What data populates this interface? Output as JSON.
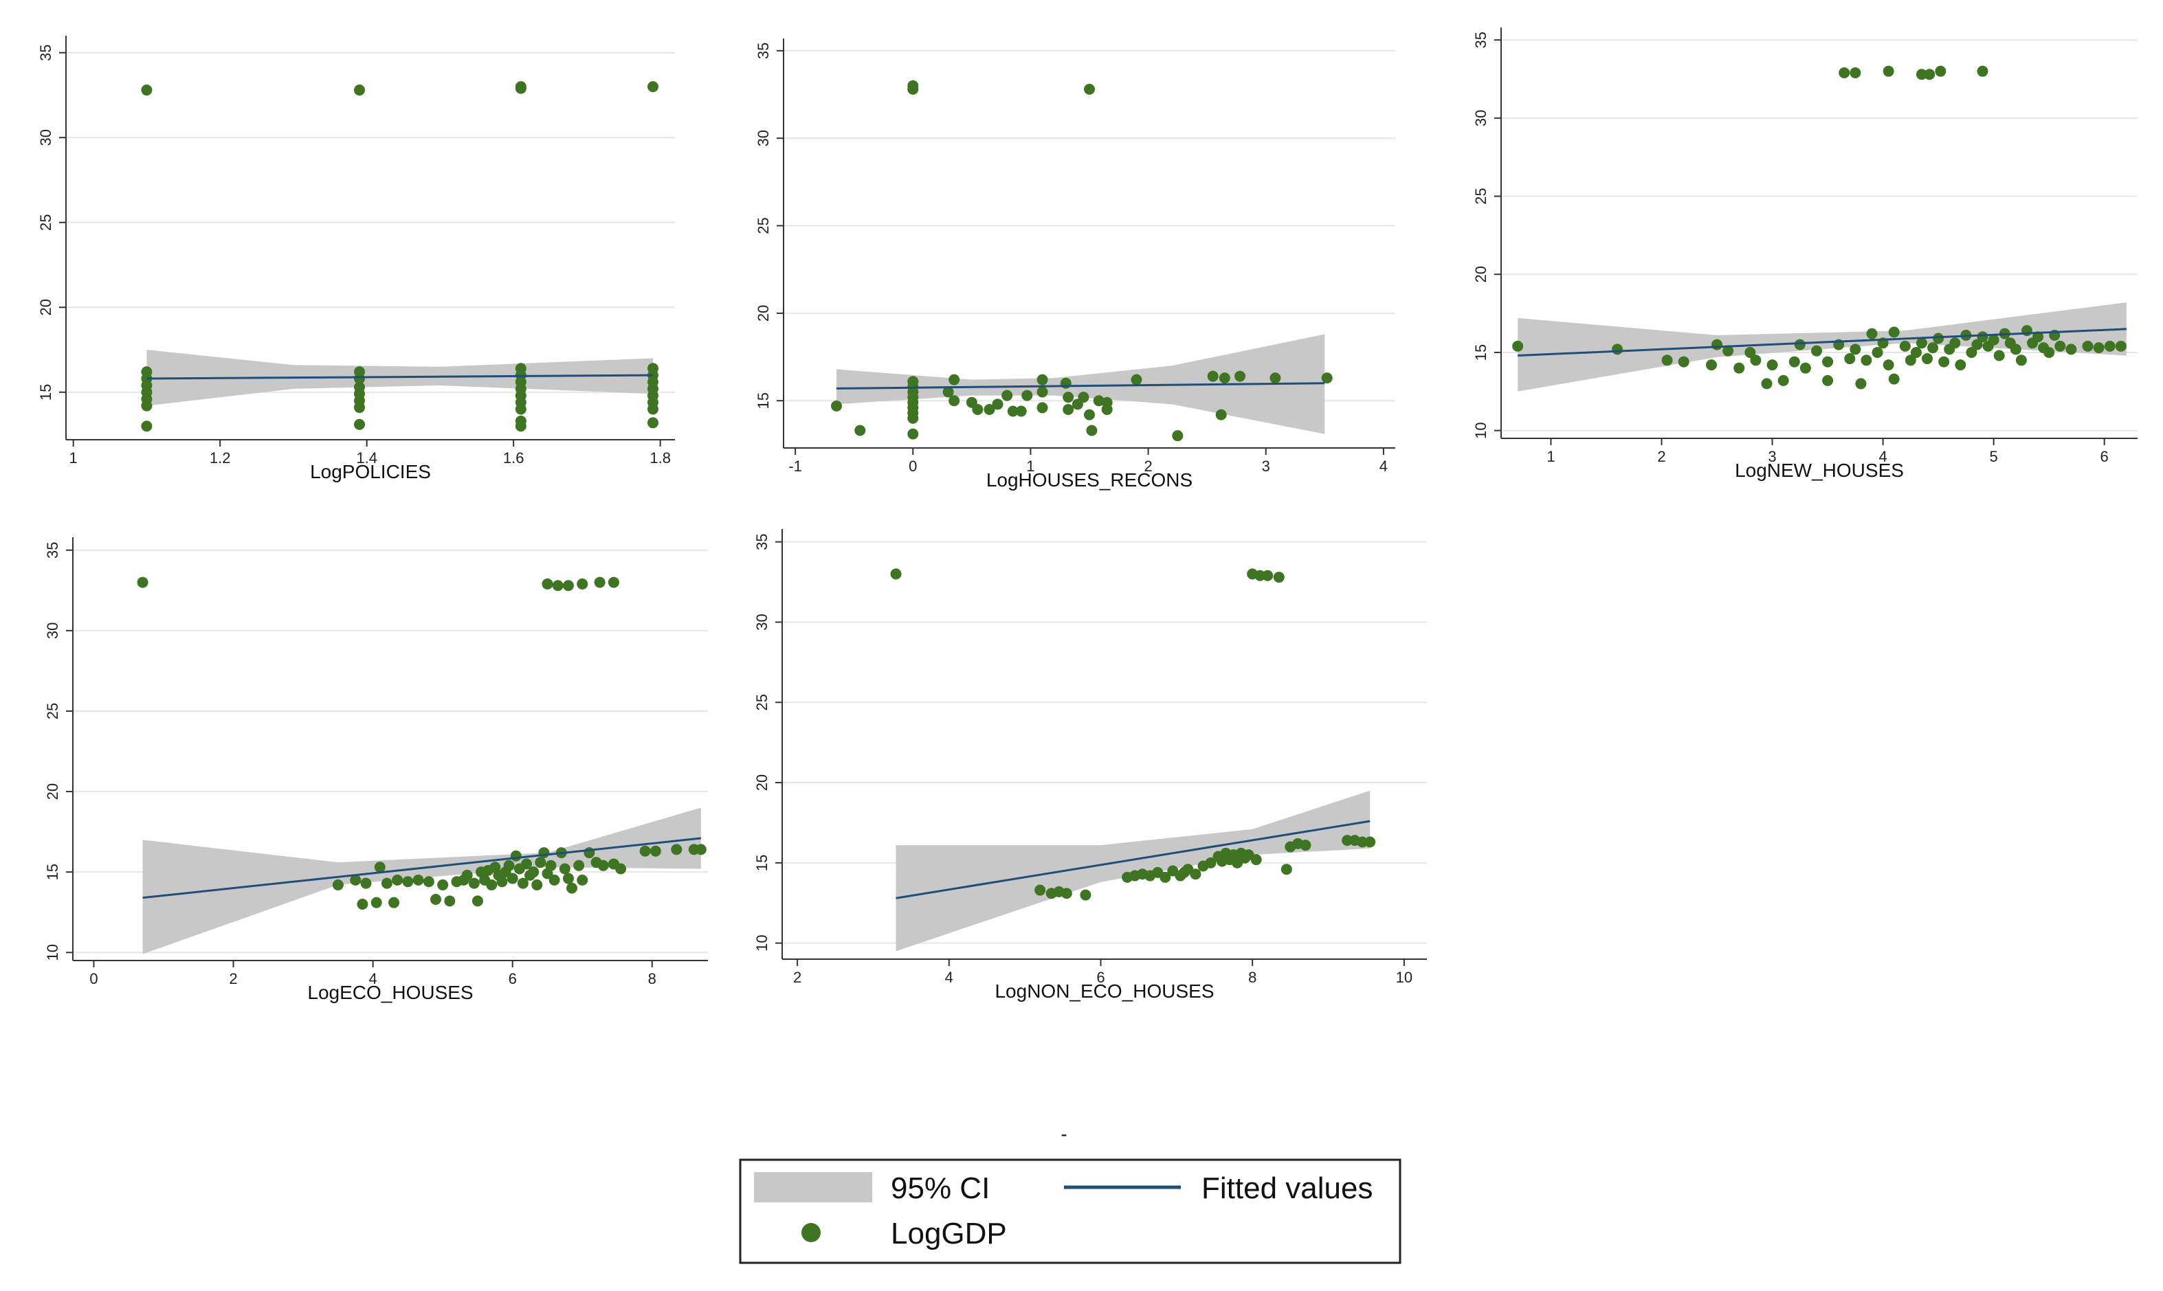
{
  "colors": {
    "marker": "#3f7422",
    "fit": "#1f4e79",
    "ci": "#c8c8c8",
    "grid": "#e6e6e6",
    "axis": "#333333"
  },
  "caption_dash": "-",
  "legend": {
    "ci_label": "95% CI",
    "fit_label": "Fitted values",
    "marker_label": "LogGDP"
  },
  "chart_data": [
    {
      "type": "scatter",
      "xlabel": "LogPOLICIES",
      "ylabel": "",
      "xlim": [
        0.99,
        1.82
      ],
      "ylim": [
        12.2,
        36
      ],
      "xticks": [
        1,
        1.2,
        1.4,
        1.6,
        1.8
      ],
      "xticklabels": [
        "1",
        "1.2",
        "1.4",
        "1.6",
        "1.8"
      ],
      "yticks": [
        15,
        20,
        25,
        30,
        35
      ],
      "yticklabels": [
        "15",
        "20",
        "25",
        "30",
        "35"
      ],
      "fit": {
        "x": [
          1.1,
          1.79
        ],
        "y": [
          15.8,
          16.0
        ]
      },
      "ci": {
        "x": [
          1.1,
          1.3,
          1.5,
          1.79
        ],
        "lower": [
          14.2,
          15.2,
          15.4,
          14.9
        ],
        "upper": [
          17.5,
          16.6,
          16.5,
          17.0
        ]
      },
      "points": [
        [
          1.1,
          32.8
        ],
        [
          1.39,
          32.8
        ],
        [
          1.61,
          33.0
        ],
        [
          1.61,
          32.9
        ],
        [
          1.79,
          33.0
        ],
        [
          1.1,
          16.2
        ],
        [
          1.1,
          15.8
        ],
        [
          1.1,
          15.4
        ],
        [
          1.1,
          15.0
        ],
        [
          1.1,
          14.6
        ],
        [
          1.1,
          14.2
        ],
        [
          1.1,
          13.0
        ],
        [
          1.39,
          16.2
        ],
        [
          1.39,
          15.8
        ],
        [
          1.39,
          15.3
        ],
        [
          1.39,
          14.9
        ],
        [
          1.39,
          14.5
        ],
        [
          1.39,
          14.1
        ],
        [
          1.39,
          13.1
        ],
        [
          1.61,
          16.4
        ],
        [
          1.61,
          16.0
        ],
        [
          1.61,
          15.6
        ],
        [
          1.61,
          15.2
        ],
        [
          1.61,
          14.8
        ],
        [
          1.61,
          14.4
        ],
        [
          1.61,
          14.0
        ],
        [
          1.61,
          13.3
        ],
        [
          1.61,
          13.0
        ],
        [
          1.79,
          16.4
        ],
        [
          1.79,
          16.0
        ],
        [
          1.79,
          15.6
        ],
        [
          1.79,
          15.2
        ],
        [
          1.79,
          14.8
        ],
        [
          1.79,
          14.4
        ],
        [
          1.79,
          14.0
        ],
        [
          1.79,
          13.2
        ]
      ]
    },
    {
      "type": "scatter",
      "xlabel": "LogHOUSES_RECONS",
      "ylabel": "",
      "xlim": [
        -1.1,
        4.1
      ],
      "ylim": [
        12.3,
        35.7
      ],
      "xticks": [
        -1,
        0,
        1,
        2,
        3,
        4
      ],
      "xticklabels": [
        "-1",
        "0",
        "1",
        "2",
        "3",
        "4"
      ],
      "yticks": [
        15,
        20,
        25,
        30,
        35
      ],
      "yticklabels": [
        "15",
        "20",
        "25",
        "30",
        "35"
      ],
      "fit": {
        "x": [
          -0.65,
          3.5
        ],
        "y": [
          15.7,
          16.0
        ]
      },
      "ci": {
        "x": [
          -0.65,
          0.5,
          1.2,
          2.2,
          3.5
        ],
        "lower": [
          14.8,
          15.3,
          15.3,
          14.8,
          13.1
        ],
        "upper": [
          16.8,
          16.2,
          16.3,
          17.0,
          18.8
        ]
      },
      "points": [
        [
          0.0,
          33.0
        ],
        [
          0.0,
          32.8
        ],
        [
          1.5,
          32.8
        ],
        [
          0.0,
          16.1
        ],
        [
          0.0,
          15.8
        ],
        [
          0.0,
          15.5
        ],
        [
          0.0,
          15.2
        ],
        [
          0.0,
          14.9
        ],
        [
          0.0,
          14.6
        ],
        [
          0.0,
          14.3
        ],
        [
          0.0,
          14.0
        ],
        [
          0.0,
          13.1
        ],
        [
          -0.65,
          14.7
        ],
        [
          -0.45,
          13.3
        ],
        [
          0.3,
          15.5
        ],
        [
          0.35,
          16.2
        ],
        [
          0.35,
          15.0
        ],
        [
          0.5,
          14.9
        ],
        [
          0.55,
          14.5
        ],
        [
          0.65,
          14.5
        ],
        [
          0.72,
          14.8
        ],
        [
          0.8,
          15.3
        ],
        [
          0.85,
          14.4
        ],
        [
          0.92,
          14.4
        ],
        [
          0.97,
          15.3
        ],
        [
          1.1,
          14.6
        ],
        [
          1.1,
          16.2
        ],
        [
          1.1,
          15.5
        ],
        [
          1.3,
          16.0
        ],
        [
          1.32,
          15.2
        ],
        [
          1.32,
          14.5
        ],
        [
          1.4,
          14.8
        ],
        [
          1.45,
          15.2
        ],
        [
          1.5,
          14.2
        ],
        [
          1.52,
          13.3
        ],
        [
          1.58,
          15.0
        ],
        [
          1.65,
          14.5
        ],
        [
          1.65,
          14.9
        ],
        [
          1.9,
          16.2
        ],
        [
          2.25,
          13.0
        ],
        [
          2.55,
          16.4
        ],
        [
          2.62,
          14.2
        ],
        [
          2.65,
          16.3
        ],
        [
          2.78,
          16.4
        ],
        [
          3.08,
          16.3
        ],
        [
          3.52,
          16.3
        ]
      ]
    },
    {
      "type": "scatter",
      "xlabel": "LogNEW_HOUSES",
      "ylabel": "",
      "xlim": [
        0.55,
        6.3
      ],
      "ylim": [
        9.5,
        35.8
      ],
      "xticks": [
        1,
        2,
        3,
        4,
        5,
        6
      ],
      "xticklabels": [
        "1",
        "2",
        "3",
        "4",
        "5",
        "6"
      ],
      "yticks": [
        10,
        15,
        20,
        25,
        30,
        35
      ],
      "yticklabels": [
        "10",
        "15",
        "20",
        "25",
        "30",
        "35"
      ],
      "fit": {
        "x": [
          0.7,
          6.2
        ],
        "y": [
          14.8,
          16.5
        ]
      },
      "ci": {
        "x": [
          0.7,
          2.5,
          4.2,
          6.2
        ],
        "lower": [
          12.5,
          14.7,
          15.6,
          14.8
        ],
        "upper": [
          17.2,
          16.1,
          16.4,
          18.2
        ]
      },
      "points": [
        [
          3.65,
          32.9
        ],
        [
          3.75,
          32.9
        ],
        [
          4.05,
          33.0
        ],
        [
          4.35,
          32.8
        ],
        [
          4.42,
          32.8
        ],
        [
          4.52,
          33.0
        ],
        [
          4.9,
          33.0
        ],
        [
          0.7,
          15.4
        ],
        [
          1.6,
          15.2
        ],
        [
          2.05,
          14.5
        ],
        [
          2.2,
          14.4
        ],
        [
          2.45,
          14.2
        ],
        [
          2.5,
          15.5
        ],
        [
          2.6,
          15.1
        ],
        [
          2.7,
          14.0
        ],
        [
          2.8,
          15.0
        ],
        [
          2.85,
          14.5
        ],
        [
          2.95,
          13.0
        ],
        [
          3.0,
          14.2
        ],
        [
          3.1,
          13.2
        ],
        [
          3.2,
          14.4
        ],
        [
          3.25,
          15.5
        ],
        [
          3.3,
          14.0
        ],
        [
          3.4,
          15.1
        ],
        [
          3.5,
          14.4
        ],
        [
          3.5,
          13.2
        ],
        [
          3.6,
          15.5
        ],
        [
          3.7,
          14.6
        ],
        [
          3.75,
          15.2
        ],
        [
          3.8,
          13.0
        ],
        [
          3.85,
          14.5
        ],
        [
          3.9,
          16.2
        ],
        [
          3.95,
          15.0
        ],
        [
          4.0,
          15.6
        ],
        [
          4.05,
          14.2
        ],
        [
          4.1,
          13.3
        ],
        [
          4.1,
          16.3
        ],
        [
          4.2,
          15.4
        ],
        [
          4.25,
          14.5
        ],
        [
          4.3,
          15.0
        ],
        [
          4.35,
          15.6
        ],
        [
          4.4,
          14.6
        ],
        [
          4.45,
          15.3
        ],
        [
          4.5,
          15.9
        ],
        [
          4.55,
          14.4
        ],
        [
          4.6,
          15.2
        ],
        [
          4.65,
          15.6
        ],
        [
          4.7,
          14.2
        ],
        [
          4.75,
          16.1
        ],
        [
          4.8,
          15.0
        ],
        [
          4.85,
          15.5
        ],
        [
          4.9,
          16.0
        ],
        [
          4.95,
          15.4
        ],
        [
          5.0,
          15.8
        ],
        [
          5.05,
          14.8
        ],
        [
          5.1,
          16.2
        ],
        [
          5.15,
          15.6
        ],
        [
          5.2,
          15.2
        ],
        [
          5.25,
          14.5
        ],
        [
          5.3,
          16.4
        ],
        [
          5.35,
          15.6
        ],
        [
          5.4,
          16.0
        ],
        [
          5.45,
          15.3
        ],
        [
          5.5,
          15.0
        ],
        [
          5.55,
          16.1
        ],
        [
          5.6,
          15.4
        ],
        [
          5.7,
          15.2
        ],
        [
          5.85,
          15.4
        ],
        [
          5.95,
          15.3
        ],
        [
          6.05,
          15.4
        ],
        [
          6.15,
          15.4
        ]
      ]
    },
    {
      "type": "scatter",
      "xlabel": "LogECO_HOUSES",
      "ylabel": "",
      "xlim": [
        -0.3,
        8.8
      ],
      "ylim": [
        9.5,
        35.8
      ],
      "xticks": [
        0,
        2,
        4,
        6,
        8
      ],
      "xticklabels": [
        "0",
        "2",
        "4",
        "6",
        "8"
      ],
      "yticks": [
        10,
        15,
        20,
        25,
        30,
        35
      ],
      "yticklabels": [
        "10",
        "15",
        "20",
        "25",
        "30",
        "35"
      ],
      "fit": {
        "x": [
          0.7,
          8.7
        ],
        "y": [
          13.4,
          17.1
        ]
      },
      "ci": {
        "x": [
          0.7,
          3.5,
          6.5,
          8.7
        ],
        "lower": [
          9.9,
          14.2,
          15.3,
          15.2
        ],
        "upper": [
          17.0,
          15.6,
          16.2,
          19.0
        ]
      },
      "points": [
        [
          0.7,
          33.0
        ],
        [
          6.5,
          32.9
        ],
        [
          6.65,
          32.8
        ],
        [
          6.8,
          32.8
        ],
        [
          7.0,
          32.9
        ],
        [
          7.25,
          33.0
        ],
        [
          7.45,
          33.0
        ],
        [
          3.5,
          14.2
        ],
        [
          3.75,
          14.5
        ],
        [
          3.9,
          14.3
        ],
        [
          3.85,
          13.0
        ],
        [
          4.05,
          13.1
        ],
        [
          4.1,
          15.3
        ],
        [
          4.2,
          14.3
        ],
        [
          4.3,
          13.1
        ],
        [
          4.35,
          14.5
        ],
        [
          4.5,
          14.4
        ],
        [
          4.65,
          14.5
        ],
        [
          4.8,
          14.4
        ],
        [
          4.9,
          13.3
        ],
        [
          5.0,
          14.2
        ],
        [
          5.1,
          13.2
        ],
        [
          5.2,
          14.4
        ],
        [
          5.3,
          14.5
        ],
        [
          5.35,
          14.8
        ],
        [
          5.45,
          14.3
        ],
        [
          5.5,
          13.2
        ],
        [
          5.55,
          15.0
        ],
        [
          5.6,
          14.5
        ],
        [
          5.65,
          15.1
        ],
        [
          5.7,
          14.2
        ],
        [
          5.75,
          15.3
        ],
        [
          5.8,
          14.8
        ],
        [
          5.85,
          14.4
        ],
        [
          5.9,
          15.0
        ],
        [
          5.95,
          15.4
        ],
        [
          6.0,
          14.6
        ],
        [
          6.05,
          16.0
        ],
        [
          6.1,
          15.2
        ],
        [
          6.15,
          14.3
        ],
        [
          6.2,
          15.5
        ],
        [
          6.25,
          14.8
        ],
        [
          6.3,
          15.0
        ],
        [
          6.35,
          14.2
        ],
        [
          6.4,
          15.6
        ],
        [
          6.45,
          16.2
        ],
        [
          6.5,
          14.9
        ],
        [
          6.55,
          15.4
        ],
        [
          6.6,
          14.5
        ],
        [
          6.7,
          16.2
        ],
        [
          6.75,
          15.2
        ],
        [
          6.8,
          14.6
        ],
        [
          6.85,
          14.0
        ],
        [
          6.95,
          15.4
        ],
        [
          7.0,
          14.5
        ],
        [
          7.1,
          16.2
        ],
        [
          7.2,
          15.6
        ],
        [
          7.3,
          15.4
        ],
        [
          7.45,
          15.5
        ],
        [
          7.55,
          15.2
        ],
        [
          7.9,
          16.3
        ],
        [
          8.05,
          16.3
        ],
        [
          8.35,
          16.4
        ],
        [
          8.6,
          16.4
        ],
        [
          8.7,
          16.4
        ]
      ]
    },
    {
      "type": "scatter",
      "xlabel": "LogNON_ECO_HOUSES",
      "ylabel": "",
      "xlim": [
        1.8,
        10.3
      ],
      "ylim": [
        9.0,
        35.8
      ],
      "xticks": [
        2,
        4,
        6,
        8,
        10
      ],
      "xticklabels": [
        "2",
        "4",
        "6",
        "8",
        "10"
      ],
      "yticks": [
        10,
        15,
        20,
        25,
        30,
        35
      ],
      "yticklabels": [
        "10",
        "15",
        "20",
        "25",
        "30",
        "35"
      ],
      "fit": {
        "x": [
          3.3,
          9.55
        ],
        "y": [
          12.8,
          17.6
        ]
      },
      "ci": {
        "x": [
          3.3,
          6.0,
          8.0,
          9.55
        ],
        "lower": [
          9.5,
          13.8,
          15.5,
          15.9
        ],
        "upper": [
          16.1,
          16.1,
          17.1,
          19.5
        ]
      },
      "points": [
        [
          3.3,
          33.0
        ],
        [
          8.0,
          33.0
        ],
        [
          8.1,
          32.9
        ],
        [
          8.2,
          32.9
        ],
        [
          8.35,
          32.8
        ],
        [
          5.2,
          13.3
        ],
        [
          5.35,
          13.1
        ],
        [
          5.45,
          13.2
        ],
        [
          5.55,
          13.1
        ],
        [
          5.8,
          13.0
        ],
        [
          6.35,
          14.1
        ],
        [
          6.45,
          14.2
        ],
        [
          6.55,
          14.3
        ],
        [
          6.65,
          14.2
        ],
        [
          6.75,
          14.4
        ],
        [
          6.85,
          14.1
        ],
        [
          6.95,
          14.5
        ],
        [
          7.05,
          14.2
        ],
        [
          7.1,
          14.4
        ],
        [
          7.15,
          14.6
        ],
        [
          7.25,
          14.3
        ],
        [
          7.35,
          14.8
        ],
        [
          7.45,
          15.0
        ],
        [
          7.55,
          15.4
        ],
        [
          7.6,
          15.1
        ],
        [
          7.65,
          15.6
        ],
        [
          7.7,
          15.2
        ],
        [
          7.75,
          15.5
        ],
        [
          7.8,
          15.0
        ],
        [
          7.85,
          15.6
        ],
        [
          7.9,
          15.3
        ],
        [
          7.95,
          15.5
        ],
        [
          8.05,
          15.2
        ],
        [
          8.45,
          14.6
        ],
        [
          8.5,
          16.0
        ],
        [
          8.6,
          16.2
        ],
        [
          8.7,
          16.1
        ],
        [
          9.25,
          16.4
        ],
        [
          9.35,
          16.4
        ],
        [
          9.45,
          16.3
        ],
        [
          9.55,
          16.3
        ]
      ]
    }
  ]
}
